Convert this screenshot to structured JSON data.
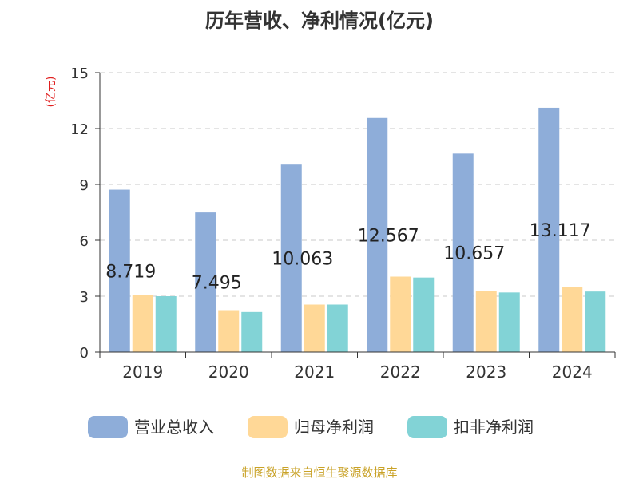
{
  "title": "历年营收、净利情况(亿元)",
  "source": "制图数据来自恒生聚源数据库",
  "chart_data": {
    "type": "bar",
    "title": "历年营收、净利情况(亿元)",
    "ylabel": "(亿元)",
    "ylim": [
      0,
      15
    ],
    "yticks": [
      0,
      3,
      6,
      9,
      12,
      15
    ],
    "grid": true,
    "legend_position": "bottom",
    "categories": [
      "2019",
      "2020",
      "2021",
      "2022",
      "2023",
      "2024"
    ],
    "series": [
      {
        "name": "营业总收入",
        "color": "#8eadd9",
        "values": [
          8.719,
          7.495,
          10.063,
          12.567,
          10.657,
          13.117
        ],
        "labels": [
          "8.719",
          "7.495",
          "10.063",
          "12.567",
          "10.657",
          "13.117"
        ]
      },
      {
        "name": "归母净利润",
        "color": "#ffd897",
        "values": [
          3.05,
          2.25,
          2.55,
          4.05,
          3.3,
          3.5
        ]
      },
      {
        "name": "扣非净利润",
        "color": "#82d3d6",
        "values": [
          3.0,
          2.15,
          2.55,
          4.0,
          3.2,
          3.25
        ]
      }
    ]
  }
}
